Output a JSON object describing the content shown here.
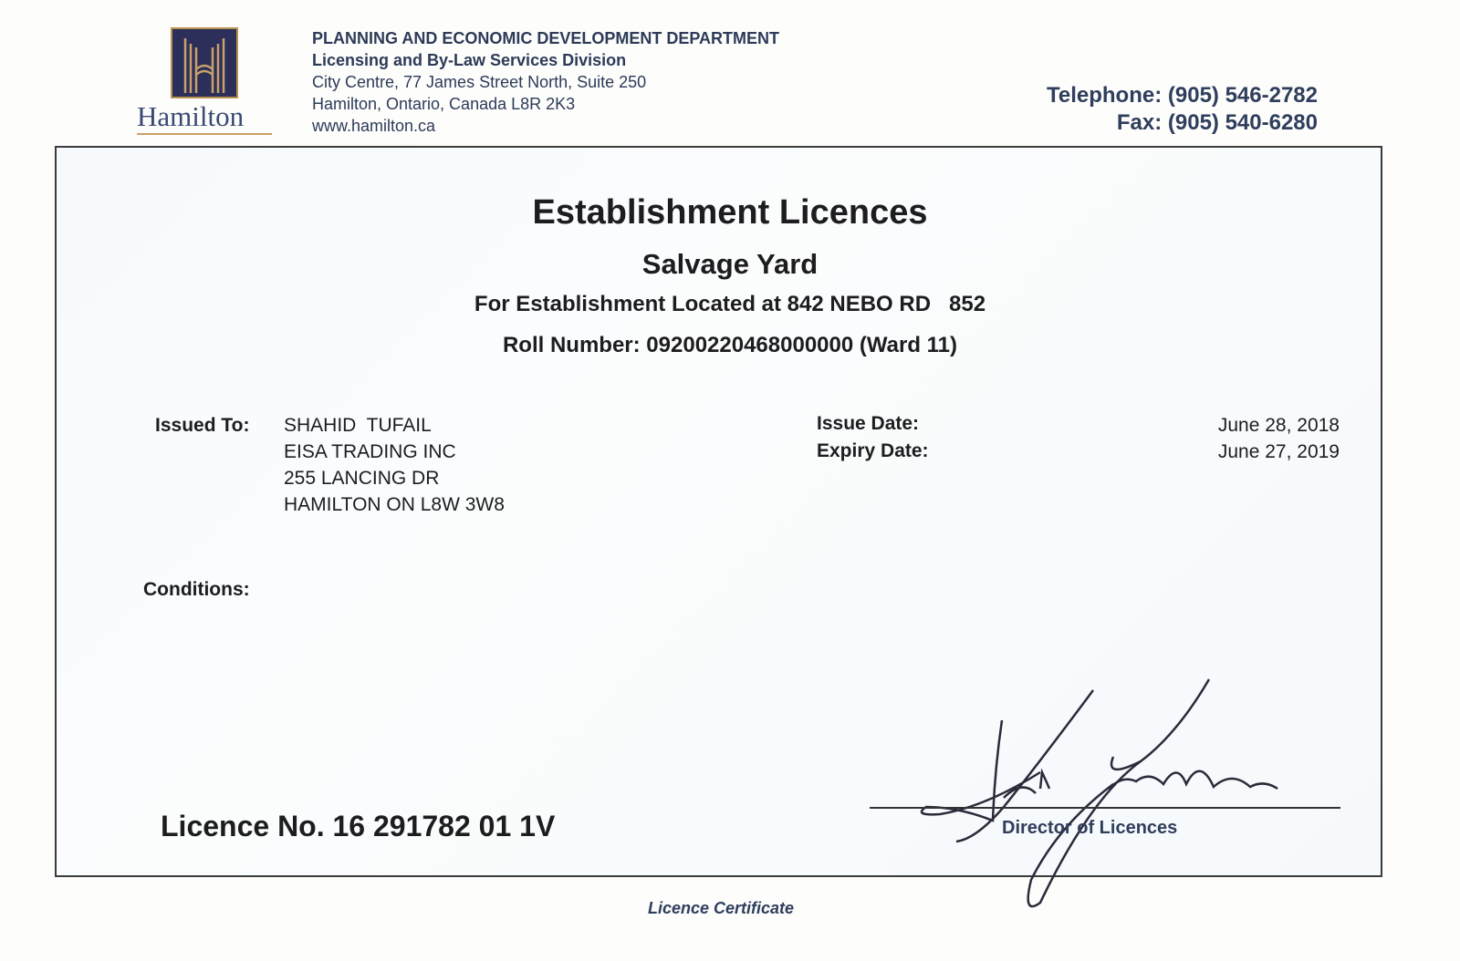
{
  "header": {
    "logo_text": "Hamilton",
    "department": "PLANNING AND ECONOMIC DEVELOPMENT DEPARTMENT",
    "division": "Licensing and By-Law Services Division",
    "address_line1": "City Centre, 77 James Street North, Suite 250",
    "address_line2": "Hamilton, Ontario, Canada  L8R 2K3",
    "website": "www.hamilton.ca",
    "telephone": "Telephone: (905) 546-2782",
    "fax": "Fax: (905) 540-6280"
  },
  "licence": {
    "title": "Establishment Licences",
    "type": "Salvage Yard",
    "location": "For Establishment Located at 842 NEBO RD   852",
    "roll_number": "Roll Number: 09200220468000000 (Ward 11)",
    "issued_to_label": "Issued To:",
    "issued_to": [
      "SHAHID  TUFAIL",
      "EISA TRADING INC",
      "255 LANCING DR",
      "HAMILTON ON L8W 3W8"
    ],
    "issue_date_label": "Issue Date:",
    "issue_date": "June 28, 2018",
    "expiry_date_label": "Expiry Date:",
    "expiry_date": "June 27, 2019",
    "conditions_label": "Conditions:",
    "licence_number": "Licence No. 16 291782 01 1V",
    "signatory_title": "Director of Licences",
    "signature_text": "Ken Leendertse"
  },
  "footer": {
    "caption": "Licence Certificate"
  }
}
